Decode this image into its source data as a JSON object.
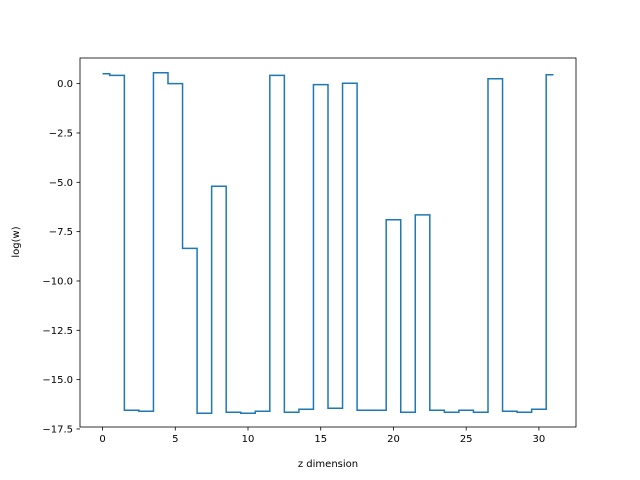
{
  "chart_data": {
    "type": "line",
    "drawstyle": "steps-mid",
    "title": "",
    "xlabel": "z dimension",
    "ylabel": "log(w)",
    "xlim": [
      -1.55,
      32.55
    ],
    "ylim": [
      -17.4,
      1.3
    ],
    "grid": false,
    "legend": "none",
    "xticks": [
      0,
      5,
      10,
      15,
      20,
      25,
      30
    ],
    "xtick_labels": [
      "0",
      "5",
      "10",
      "15",
      "20",
      "25",
      "30"
    ],
    "yticks": [
      0.0,
      -2.5,
      -5.0,
      -7.5,
      -10.0,
      -12.5,
      -15.0,
      -17.5
    ],
    "ytick_labels": [
      "0.0",
      "−2.5",
      "−5.0",
      "−7.5",
      "−10.0",
      "−12.5",
      "−15.0",
      "−17.5"
    ],
    "series": [
      {
        "color": "#1f77b4",
        "x": [
          0,
          1,
          2,
          3,
          4,
          5,
          6,
          7,
          8,
          9,
          10,
          11,
          12,
          13,
          14,
          15,
          16,
          17,
          18,
          19,
          20,
          21,
          22,
          23,
          24,
          25,
          26,
          27,
          28,
          29,
          30,
          31
        ],
        "y": [
          0.5,
          0.42,
          -16.55,
          -16.6,
          0.55,
          0.0,
          -8.35,
          -16.7,
          -5.2,
          -16.65,
          -16.7,
          -16.6,
          0.42,
          -16.65,
          -16.5,
          -0.05,
          -16.45,
          0.02,
          -16.55,
          -16.55,
          -6.9,
          -16.65,
          -6.65,
          -16.55,
          -16.65,
          -16.55,
          -16.65,
          0.25,
          -16.6,
          -16.65,
          -16.5,
          0.45
        ]
      }
    ]
  }
}
